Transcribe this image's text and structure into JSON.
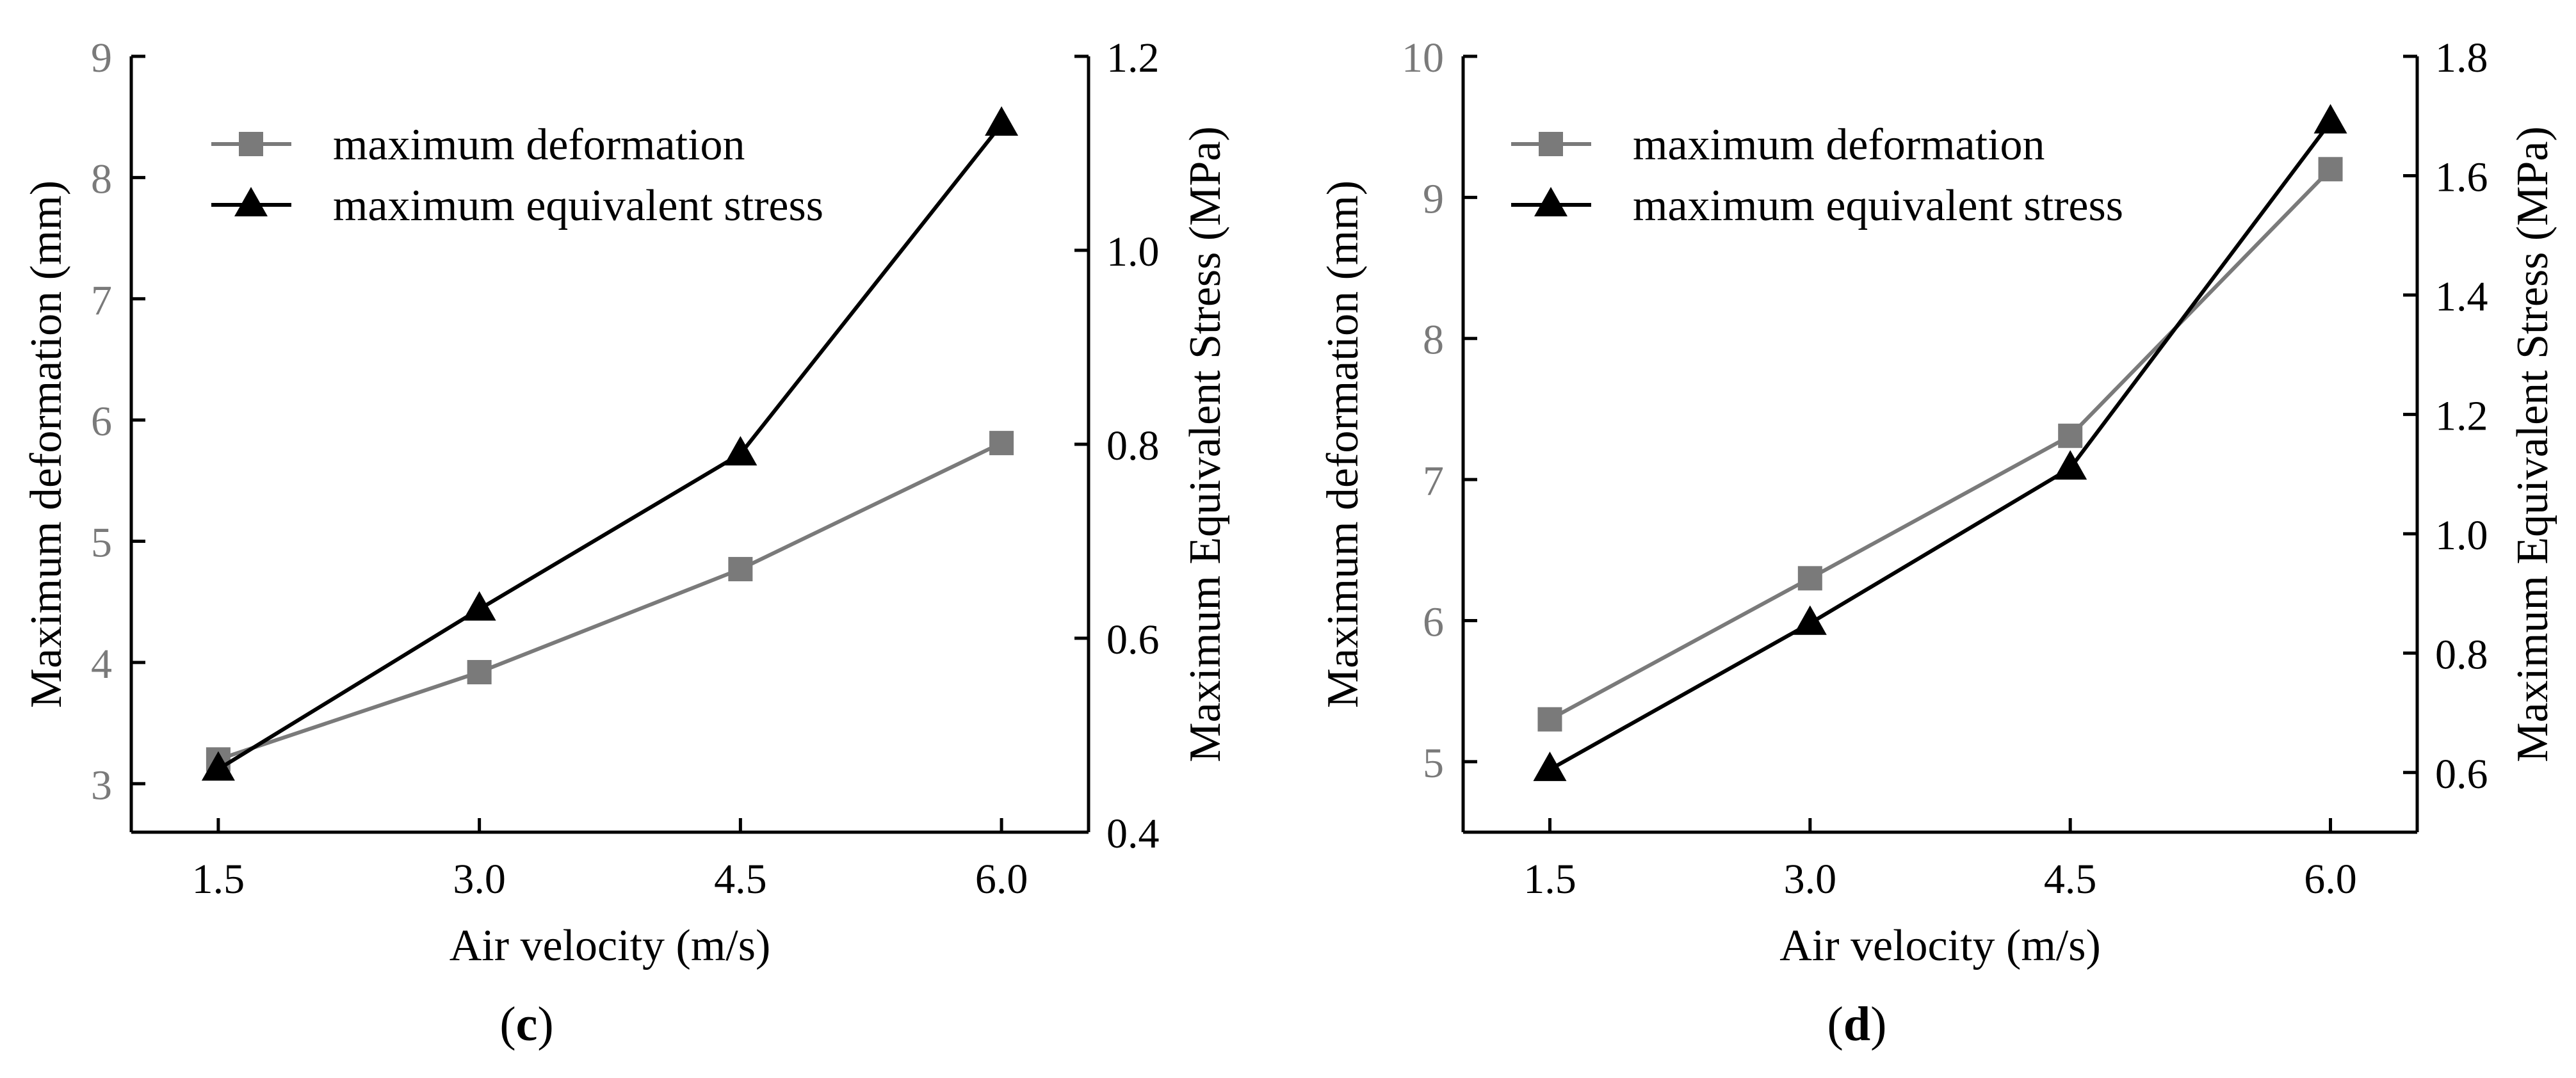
{
  "colors": {
    "deformation": "#7a7a7a",
    "stress": "#000000",
    "left_axis_labels": "#7a7a7a"
  },
  "chart_data": [
    {
      "type": "line",
      "panel_label": "c",
      "xlabel": "Air velocity (m/s)",
      "ylabel_left": "Maximum deformation (mm)",
      "ylabel_right": "Maximum Equivalent Stress (MPa)",
      "x_categories": [
        "1.5",
        "3.0",
        "4.5",
        "6.0"
      ],
      "x": [
        1.5,
        3.0,
        4.5,
        6.0
      ],
      "xlim": [
        1.0,
        6.5
      ],
      "ylim_left": [
        2.6,
        9
      ],
      "yticks_left": [
        3,
        4,
        5,
        6,
        7,
        8,
        9
      ],
      "ytick_labels_left": [
        "3",
        "4",
        "5",
        "6",
        "7",
        "8",
        "9"
      ],
      "ylim_right": [
        0.4,
        1.2
      ],
      "yticks_right": [
        0.4,
        0.6,
        0.8,
        1.0,
        1.2
      ],
      "ytick_labels_right": [
        "0.4",
        "0.6",
        "0.8",
        "1.0",
        "1.2"
      ],
      "legend_position": "top-left",
      "series": [
        {
          "name": "maximum deformation",
          "axis": "left",
          "marker": "square",
          "color": "#7a7a7a",
          "values": [
            3.2,
            3.92,
            4.77,
            5.81
          ]
        },
        {
          "name": "maximum equivalent stress",
          "axis": "right",
          "marker": "triangle",
          "color": "#000000",
          "values": [
            0.465,
            0.63,
            0.79,
            1.13
          ]
        }
      ]
    },
    {
      "type": "line",
      "panel_label": "d",
      "xlabel": "Air velocity (m/s)",
      "ylabel_left": "Maximum deformation (mm)",
      "ylabel_right": "Maximum Equivalent Stress (MPa)",
      "x_categories": [
        "1.5",
        "3.0",
        "4.5",
        "6.0"
      ],
      "x": [
        1.5,
        3.0,
        4.5,
        6.0
      ],
      "xlim": [
        1.0,
        6.5
      ],
      "ylim_left": [
        4.5,
        10
      ],
      "yticks_left": [
        5,
        6,
        7,
        8,
        9,
        10
      ],
      "ytick_labels_left": [
        "5",
        "6",
        "7",
        "8",
        "9",
        "10"
      ],
      "ylim_right": [
        0.5,
        1.8
      ],
      "yticks_right": [
        0.6,
        0.8,
        1.0,
        1.2,
        1.4,
        1.6,
        1.8
      ],
      "ytick_labels_right": [
        "0.6",
        "0.8",
        "1.0",
        "1.2",
        "1.4",
        "1.6",
        "1.8"
      ],
      "legend_position": "top-left",
      "series": [
        {
          "name": "maximum deformation",
          "axis": "left",
          "marker": "square",
          "color": "#7a7a7a",
          "values": [
            5.3,
            6.3,
            7.31,
            9.2
          ]
        },
        {
          "name": "maximum equivalent stress",
          "axis": "right",
          "marker": "triangle",
          "color": "#000000",
          "values": [
            0.605,
            0.85,
            1.11,
            1.69
          ]
        }
      ]
    }
  ]
}
